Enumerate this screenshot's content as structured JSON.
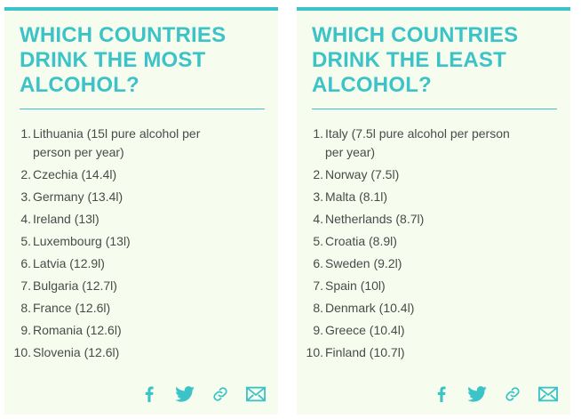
{
  "accent_color": "#3cc3c7",
  "card_background": "#f7fdee",
  "left_card": {
    "title": "WHICH COUNTRIES DRINK THE MOST ALCOHOL?",
    "items": [
      {
        "num": "1.",
        "text": "Lithuania (15l pure alcohol per person per year)"
      },
      {
        "num": "2.",
        "text": "Czechia (14.4l)"
      },
      {
        "num": "3.",
        "text": "Germany (13.4l)"
      },
      {
        "num": "4.",
        "text": "Ireland (13l)"
      },
      {
        "num": "5.",
        "text": "Luxembourg (13l)"
      },
      {
        "num": "6.",
        "text": "Latvia (12.9l)"
      },
      {
        "num": "7.",
        "text": "Bulgaria (12.7l)"
      },
      {
        "num": "8.",
        "text": "France (12.6l)"
      },
      {
        "num": "9.",
        "text": "Romania (12.6l)"
      },
      {
        "num": "10.",
        "text": "Slovenia (12.6l)"
      }
    ]
  },
  "right_card": {
    "title": "WHICH COUNTRIES DRINK THE LEAST ALCOHOL?",
    "items": [
      {
        "num": "1.",
        "text": "Italy (7.5l pure alcohol per person per year)"
      },
      {
        "num": "2.",
        "text": "Norway (7.5l)"
      },
      {
        "num": "3.",
        "text": "Malta (8.1l)"
      },
      {
        "num": "4.",
        "text": "Netherlands (8.7l)"
      },
      {
        "num": "5.",
        "text": "Croatia (8.9l)"
      },
      {
        "num": "6.",
        "text": "Sweden (9.2l)"
      },
      {
        "num": "7.",
        "text": "Spain (10l)"
      },
      {
        "num": "8.",
        "text": "Denmark (10.4l)"
      },
      {
        "num": "9.",
        "text": "Greece (10.4l)"
      },
      {
        "num": "10.",
        "text": "Finland (10.7l)"
      }
    ]
  },
  "share_icons": [
    "facebook-icon",
    "twitter-icon",
    "link-icon",
    "email-icon"
  ]
}
